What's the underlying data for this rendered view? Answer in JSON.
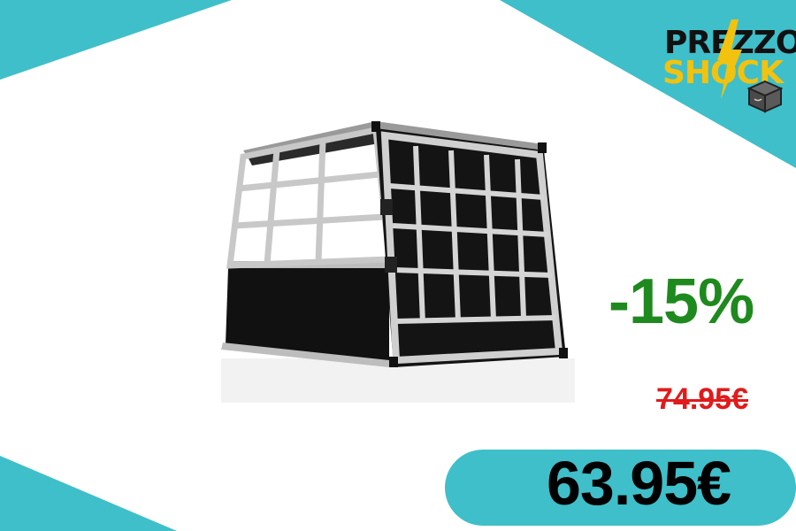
{
  "brand": {
    "line1": "PREZZO",
    "line2": "SHOCK",
    "accent_color": "#3fbfc9",
    "bolt_color": "#f2c20f",
    "box_icon": "package-box-icon"
  },
  "product": {
    "image_icon": "aluminum-dog-crate-image"
  },
  "offer": {
    "discount": "-15%",
    "old_price": "74.95€",
    "new_price": "63.95€",
    "discount_color": "#1e8a1e",
    "old_price_color": "#e01b1b"
  }
}
